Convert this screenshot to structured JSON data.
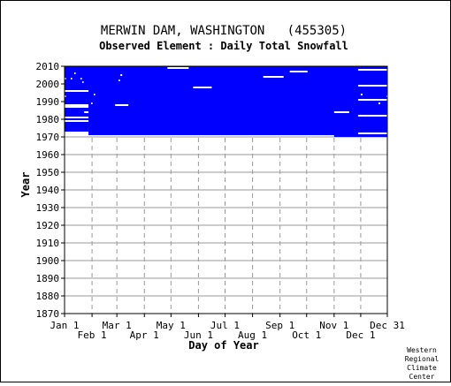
{
  "chart_data": {
    "type": "heatmap",
    "title": "MERWIN DAM, WASHINGTON   (455305)",
    "subtitle": "Observed Element : Daily Total Snowfall",
    "xlabel": "Day of Year",
    "ylabel": "Year",
    "x_ticks_upper": [
      "Jan 1",
      "Mar 1",
      "May 1",
      "Jul 1",
      "Sep 1",
      "Nov 1",
      "Dec 31"
    ],
    "x_ticks_lower": [
      "Feb 1",
      "Apr 1",
      "Jun 1",
      "Aug 1",
      "Oct 1",
      "Dec 1"
    ],
    "x_tick_days": [
      1,
      32,
      60,
      91,
      121,
      152,
      182,
      213,
      244,
      274,
      305,
      335,
      365
    ],
    "y_ticks": [
      2010,
      2000,
      1990,
      1980,
      1970,
      1960,
      1950,
      1940,
      1930,
      1920,
      1910,
      1900,
      1890,
      1880,
      1870
    ],
    "xlim": [
      1,
      365
    ],
    "ylim": [
      1870,
      2010
    ],
    "grid": true,
    "data_color": "#0000ff",
    "data_block": {
      "day_range": [
        1,
        365
      ],
      "year_range": [
        1971,
        2010
      ],
      "early_start_year_jan_feb": 1973,
      "late_end_year_nov_dec": 1970
    },
    "gaps": [
      {
        "day_start": 1,
        "day_end": 28,
        "year": 1981
      },
      {
        "day_start": 1,
        "day_end": 28,
        "year": 1979
      },
      {
        "day_start": 1,
        "day_end": 28,
        "year": 1988
      },
      {
        "day_start": 1,
        "day_end": 28,
        "year": 1987
      },
      {
        "day_start": 1,
        "day_end": 28,
        "year": 1996
      },
      {
        "day_start": 23,
        "day_end": 28,
        "year": 1984
      },
      {
        "day_start": 1,
        "day_end": 2,
        "year": 2003
      },
      {
        "day_start": 1,
        "day_end": 2,
        "year": 1993
      },
      {
        "day_start": 8,
        "day_end": 9,
        "year": 2003
      },
      {
        "day_start": 12,
        "day_end": 13,
        "year": 2006
      },
      {
        "day_start": 19,
        "day_end": 20,
        "year": 2003
      },
      {
        "day_start": 21,
        "day_end": 22,
        "year": 2001
      },
      {
        "day_start": 31,
        "day_end": 32,
        "year": 1989
      },
      {
        "day_start": 34,
        "day_end": 35,
        "year": 1994
      },
      {
        "day_start": 58,
        "day_end": 73,
        "year": 1988
      },
      {
        "day_start": 64,
        "day_end": 66,
        "year": 2005
      },
      {
        "day_start": 62,
        "day_end": 63,
        "year": 2002
      },
      {
        "day_start": 117,
        "day_end": 141,
        "year": 2009
      },
      {
        "day_start": 146,
        "day_end": 167,
        "year": 1998
      },
      {
        "day_start": 225,
        "day_end": 248,
        "year": 2004
      },
      {
        "day_start": 255,
        "day_end": 275,
        "year": 2007
      },
      {
        "day_start": 305,
        "day_end": 322,
        "year": 1984
      },
      {
        "day_start": 332,
        "day_end": 365,
        "year": 2008
      },
      {
        "day_start": 332,
        "day_end": 365,
        "year": 1999
      },
      {
        "day_start": 332,
        "day_end": 365,
        "year": 1991
      },
      {
        "day_start": 332,
        "day_end": 365,
        "year": 1982
      },
      {
        "day_start": 332,
        "day_end": 365,
        "year": 1972
      },
      {
        "day_start": 335,
        "day_end": 337,
        "year": 1994
      },
      {
        "day_start": 355,
        "day_end": 357,
        "year": 1989
      },
      {
        "day_start": 364,
        "day_end": 365,
        "year": 1993
      }
    ],
    "credit": [
      "Western",
      "Regional",
      "Climate",
      "Center"
    ]
  }
}
